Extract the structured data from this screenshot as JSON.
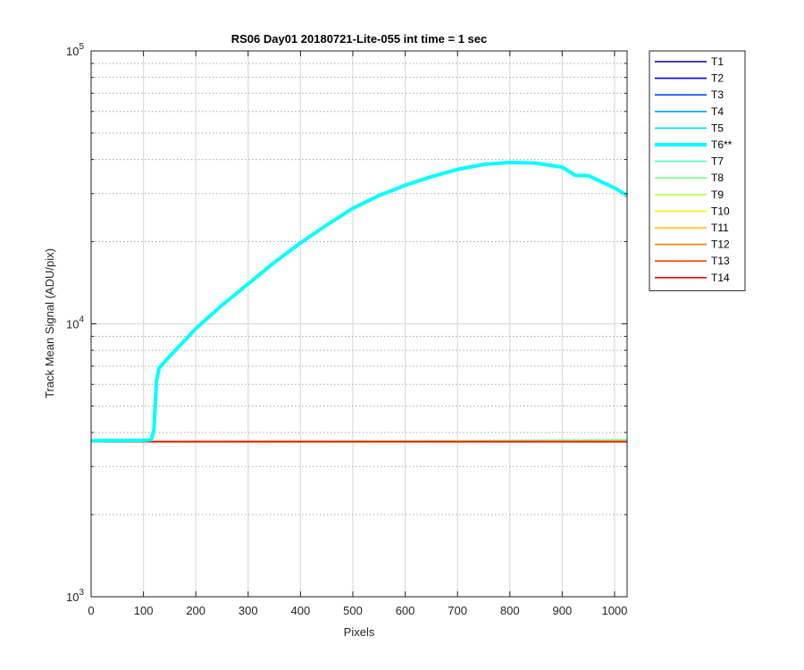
{
  "chart_data": {
    "type": "line",
    "title": "RS06 Day01 20180721-Lite-055 int time = 1 sec",
    "xlabel": "Pixels",
    "ylabel": "Track Mean Signal (ADU/pix)",
    "xlim": [
      0,
      1024
    ],
    "ylim": [
      1000,
      100000
    ],
    "yscale": "log",
    "grid": true,
    "legend_position": "outside-top-right",
    "x_ticks": [
      "0",
      "100",
      "200",
      "300",
      "400",
      "500",
      "600",
      "700",
      "800",
      "900",
      "1000"
    ],
    "y_tick_labels": [
      {
        "base": "10",
        "exp": "3"
      },
      {
        "base": "10",
        "exp": "4"
      },
      {
        "base": "10",
        "exp": "5"
      }
    ],
    "series": [
      {
        "name": "T1",
        "color": "#00008f",
        "points": [
          [
            0,
            3700
          ],
          [
            1024,
            3700
          ]
        ]
      },
      {
        "name": "T2",
        "color": "#0000ff",
        "points": [
          [
            0,
            3700
          ],
          [
            1024,
            3700
          ]
        ]
      },
      {
        "name": "T3",
        "color": "#0050ff",
        "points": [
          [
            0,
            3700
          ],
          [
            1024,
            3700
          ]
        ]
      },
      {
        "name": "T4",
        "color": "#009fff",
        "points": [
          [
            0,
            3700
          ],
          [
            1024,
            3700
          ]
        ]
      },
      {
        "name": "T5",
        "color": "#00dfff",
        "points": [
          [
            0,
            3700
          ],
          [
            1024,
            3700
          ]
        ]
      },
      {
        "name": "T6**",
        "color": "#00ffff",
        "highlight": true,
        "points": [
          [
            0,
            3730
          ],
          [
            100,
            3740
          ],
          [
            115,
            3760
          ],
          [
            120,
            4100
          ],
          [
            125,
            6200
          ],
          [
            130,
            6900
          ],
          [
            150,
            7600
          ],
          [
            200,
            9600
          ],
          [
            250,
            11700
          ],
          [
            300,
            14000
          ],
          [
            350,
            16800
          ],
          [
            400,
            19800
          ],
          [
            450,
            23000
          ],
          [
            500,
            26500
          ],
          [
            550,
            29500
          ],
          [
            600,
            32200
          ],
          [
            650,
            34600
          ],
          [
            700,
            36800
          ],
          [
            750,
            38400
          ],
          [
            800,
            39000
          ],
          [
            850,
            38800
          ],
          [
            900,
            37500
          ],
          [
            925,
            35000
          ],
          [
            950,
            34900
          ],
          [
            1000,
            31500
          ],
          [
            1024,
            29500
          ]
        ]
      },
      {
        "name": "T7",
        "color": "#4fffaf",
        "points": [
          [
            0,
            3700
          ],
          [
            500,
            3720
          ],
          [
            800,
            3740
          ],
          [
            1024,
            3760
          ]
        ]
      },
      {
        "name": "T8",
        "color": "#7fff7f",
        "points": [
          [
            0,
            3700
          ],
          [
            600,
            3720
          ],
          [
            1024,
            3750
          ]
        ]
      },
      {
        "name": "T9",
        "color": "#afff4f",
        "points": [
          [
            0,
            3700
          ],
          [
            1024,
            3720
          ]
        ]
      },
      {
        "name": "T10",
        "color": "#ffef00",
        "points": [
          [
            0,
            3700
          ],
          [
            1024,
            3700
          ]
        ]
      },
      {
        "name": "T11",
        "color": "#ffbf00",
        "points": [
          [
            0,
            3700
          ],
          [
            1024,
            3700
          ]
        ]
      },
      {
        "name": "T12",
        "color": "#ff8000",
        "points": [
          [
            0,
            3700
          ],
          [
            1024,
            3700
          ]
        ]
      },
      {
        "name": "T13",
        "color": "#ff4000",
        "points": [
          [
            0,
            3700
          ],
          [
            1024,
            3700
          ]
        ]
      },
      {
        "name": "T14",
        "color": "#ff0000",
        "points": [
          [
            0,
            3700
          ],
          [
            1024,
            3700
          ]
        ]
      }
    ]
  }
}
